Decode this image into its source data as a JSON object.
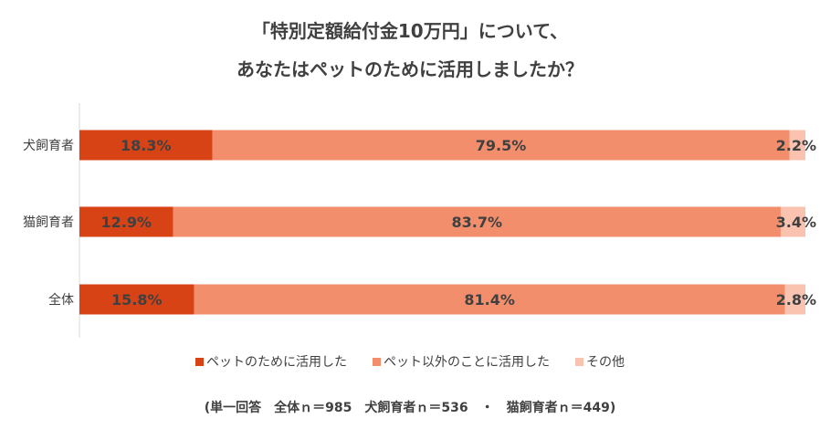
{
  "chart_data": {
    "type": "bar",
    "orientation": "horizontal",
    "stacked": true,
    "title": "「特別定額給付金10万円」について、",
    "subtitle": "あなたはペットのために活用しましたか？",
    "categories": [
      "犬飼育者",
      "猫飼育者",
      "全体"
    ],
    "series": [
      {
        "name": "ペットのために活用した",
        "values": [
          18.3,
          12.9,
          15.8
        ],
        "color": "#d84315"
      },
      {
        "name": "ペット以外のことに活用した",
        "values": [
          79.5,
          83.7,
          81.4
        ],
        "color": "#f28e6c"
      },
      {
        "name": "その他",
        "values": [
          2.2,
          3.4,
          2.8
        ],
        "color": "#f9c3b0"
      }
    ],
    "data_label_suffix": "%",
    "xlim": [
      0,
      100
    ],
    "grid": false,
    "legend_position": "bottom"
  },
  "note": "(単一回答　全体ｎ＝985　犬飼育者ｎ＝536　・　猫飼育者ｎ＝449)"
}
